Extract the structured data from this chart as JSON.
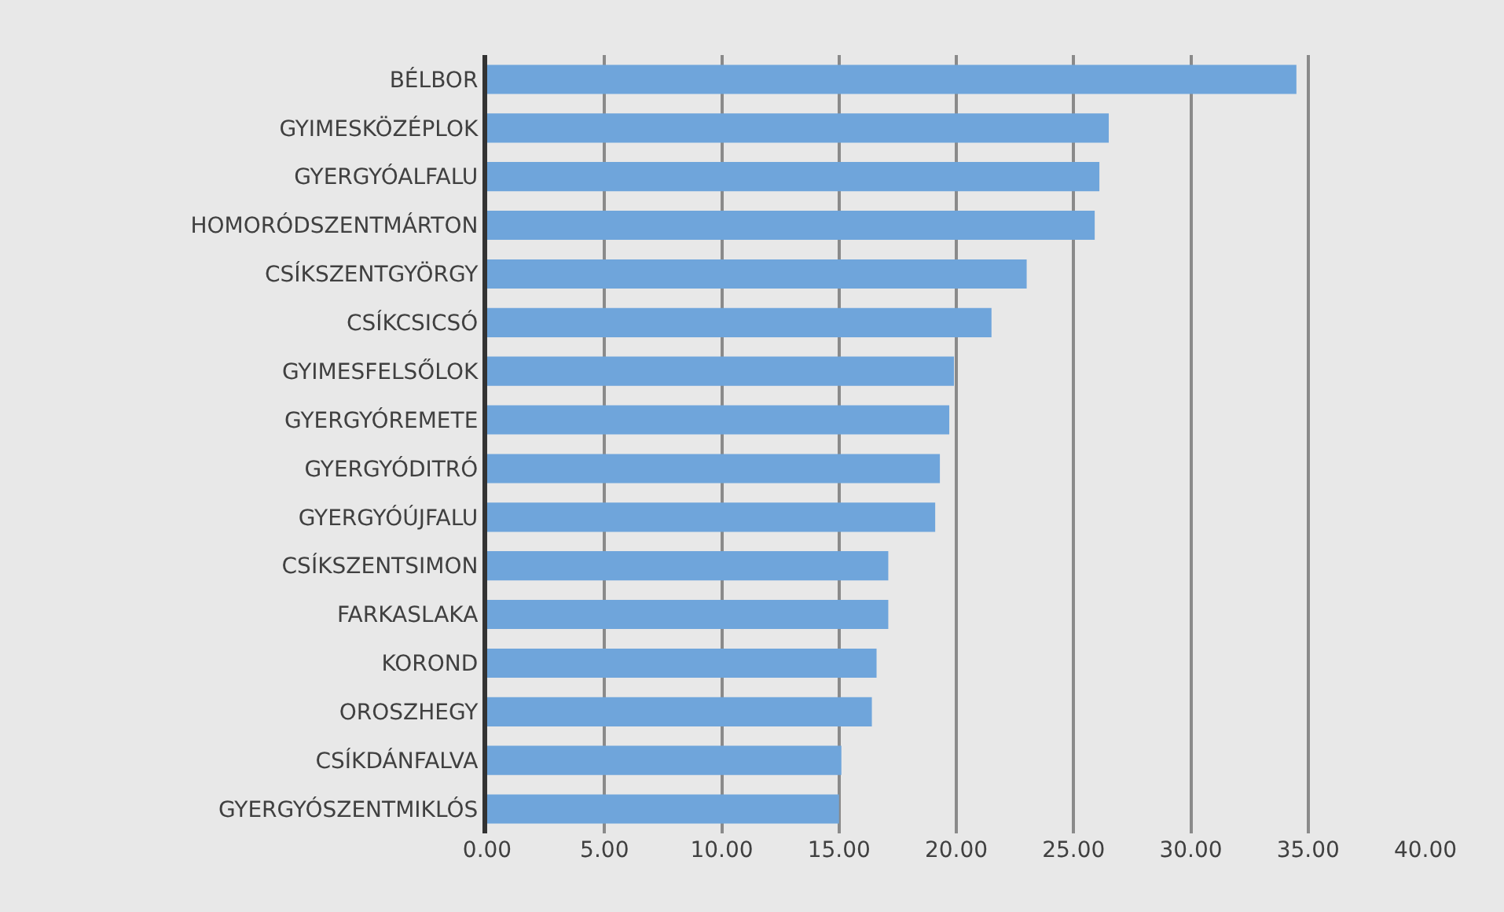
{
  "chart_data": {
    "type": "bar",
    "orientation": "horizontal",
    "categories": [
      "BÉLBOR",
      "GYIMESKÖZÉPLOK",
      "GYERGYÓALFALU",
      "HOMORÓDSZENTMÁRTON",
      "CSÍKSZENTGYÖRGY",
      "CSÍKCSICSÓ",
      "GYIMESFELSŐLOK",
      "GYERGYÓREMETE",
      "GYERGYÓDITRÓ",
      "GYERGYÓÚJFALU",
      "CSÍKSZENTSIMON",
      "FARKASLAKA",
      "KOROND",
      "OROSZHEGY",
      "CSÍKDÁNFALVA",
      "GYERGYÓSZENTMIKLÓS"
    ],
    "values": [
      34.5,
      26.5,
      26.1,
      25.9,
      23.0,
      21.5,
      19.9,
      19.7,
      19.3,
      19.1,
      17.1,
      17.1,
      16.6,
      16.4,
      15.1,
      15.0
    ],
    "color": "#6fa5db",
    "xlim": [
      0,
      40
    ],
    "xticks": [
      {
        "value": 0,
        "label": "0.00"
      },
      {
        "value": 5,
        "label": "5.00"
      },
      {
        "value": 10,
        "label": "10.00"
      },
      {
        "value": 15,
        "label": "15.00"
      },
      {
        "value": 20,
        "label": "20.00"
      },
      {
        "value": 25,
        "label": "25.00"
      },
      {
        "value": 30,
        "label": "30.00"
      },
      {
        "value": 35,
        "label": "35.00"
      },
      {
        "value": 40,
        "label": "40.00"
      }
    ],
    "grid": "x"
  }
}
